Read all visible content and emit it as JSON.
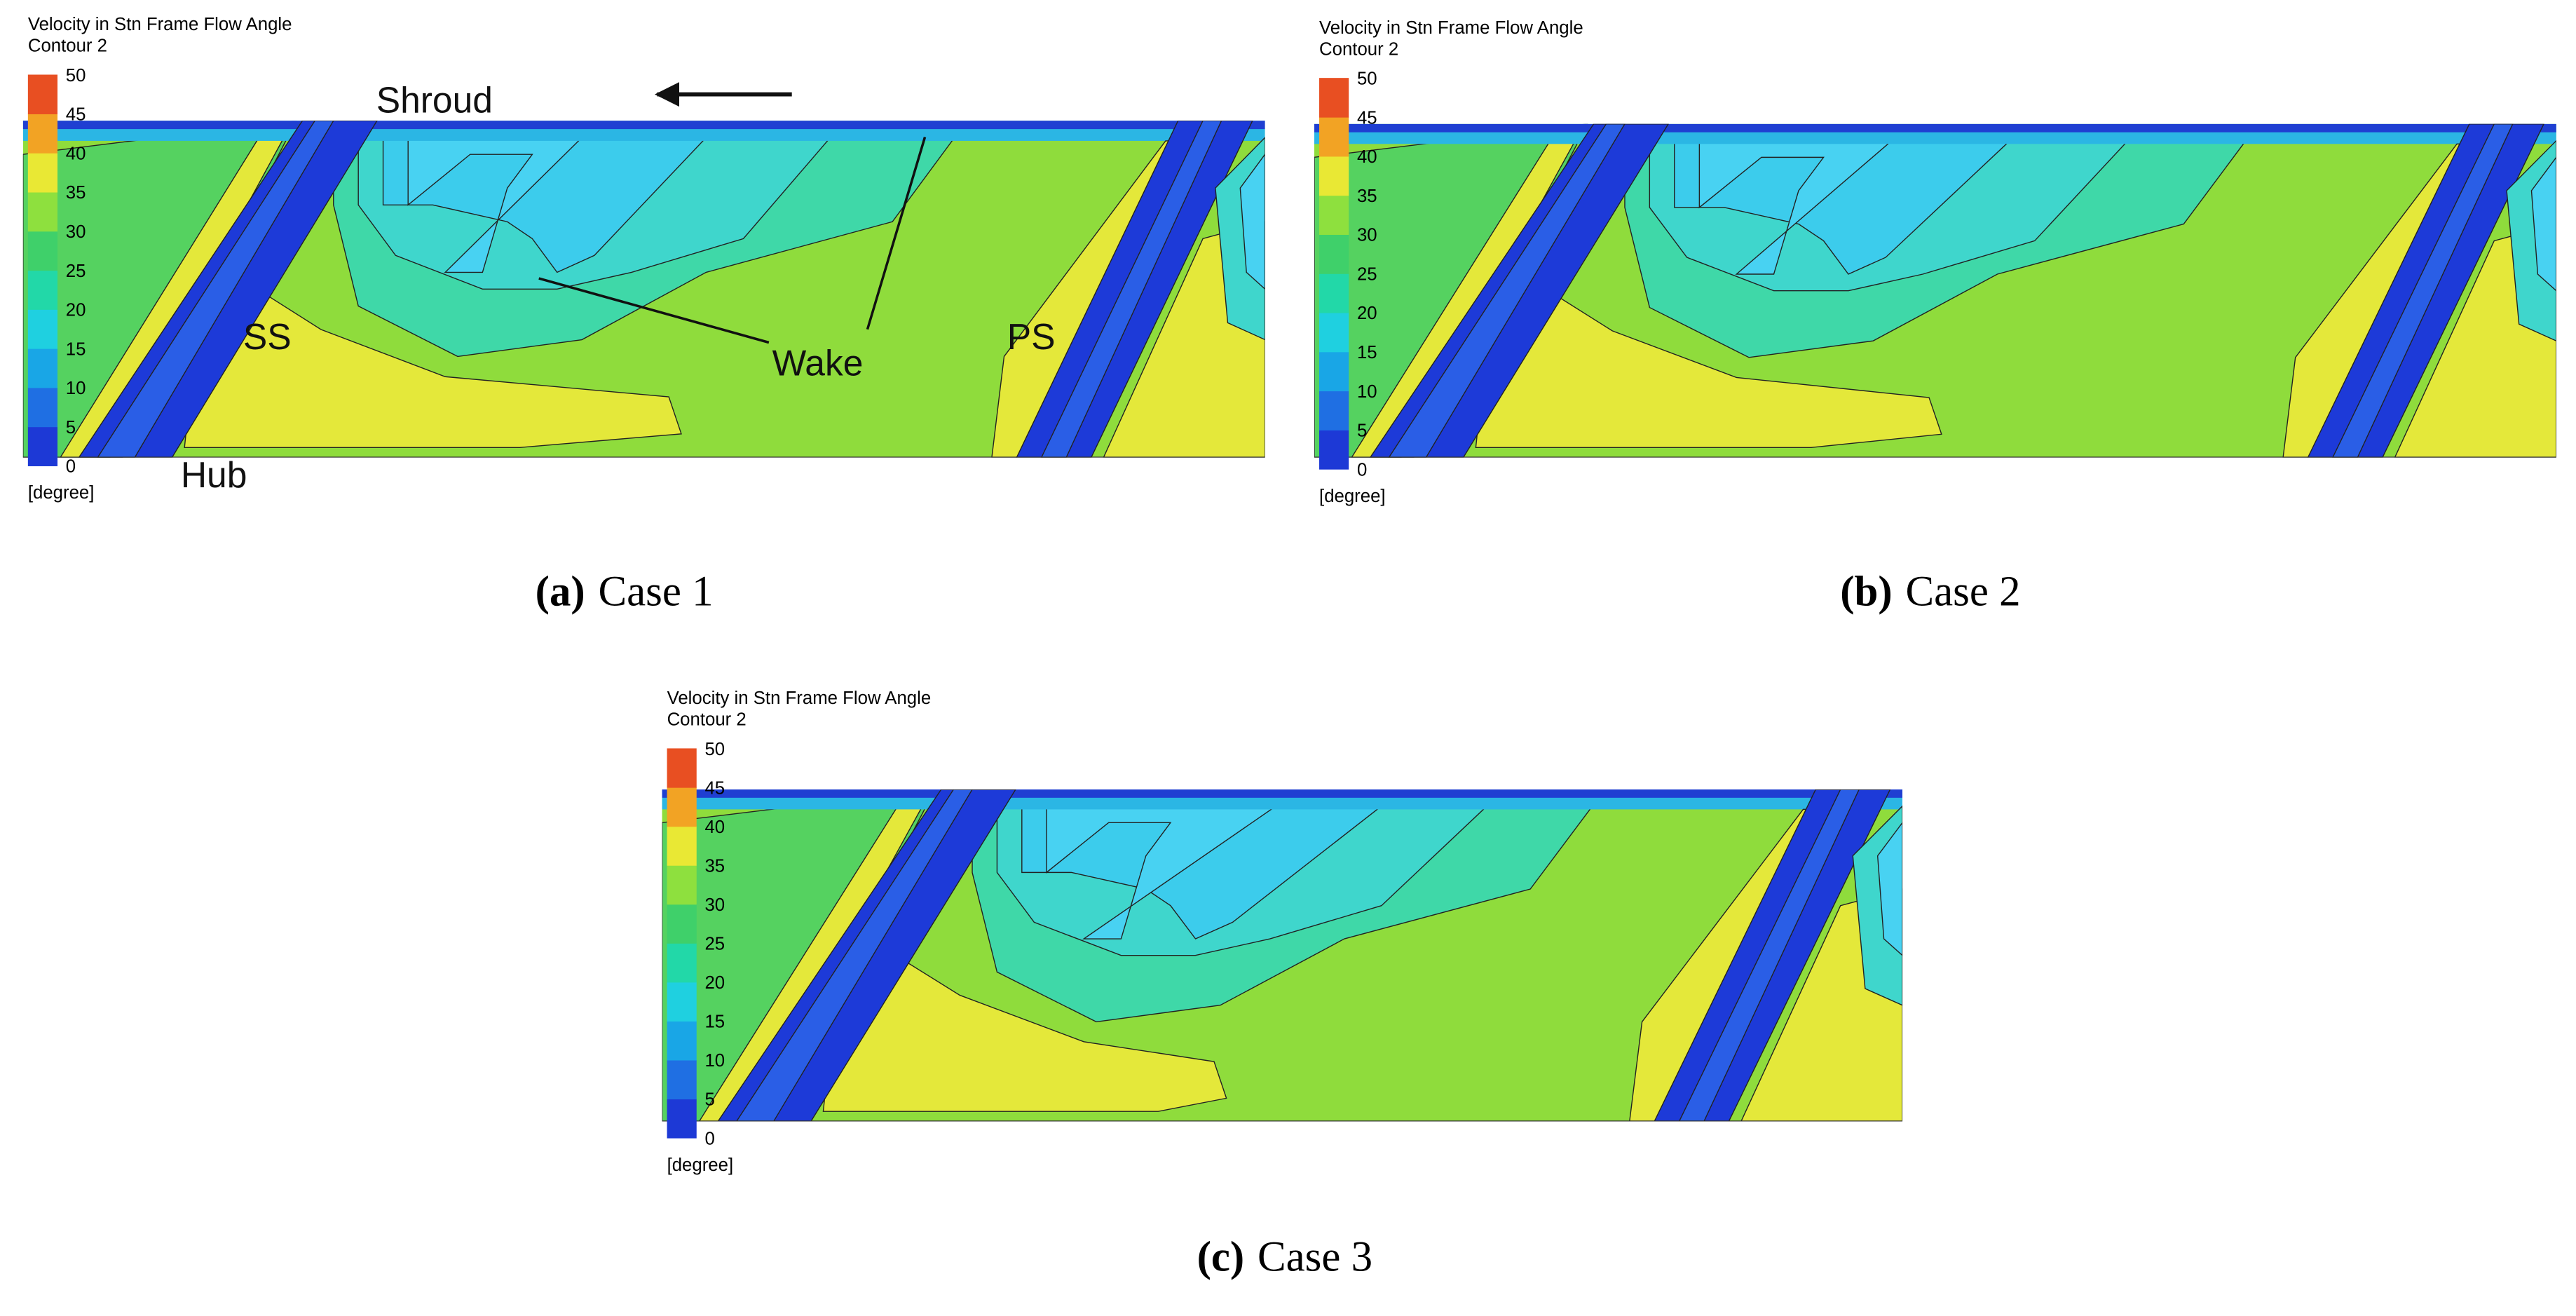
{
  "panels": [
    {
      "legend": {
        "title": "Velocity in Stn Frame Flow Angle",
        "subtitle": "Contour 2",
        "ticks": [
          0,
          5,
          10,
          15,
          20,
          25,
          30,
          35,
          40,
          45,
          50
        ],
        "unit": "[degree]"
      },
      "caption": {
        "label": "(a)",
        "text": "Case 1"
      },
      "annotations": [
        "Shroud",
        "SS",
        "PS",
        "Wake",
        "Hub"
      ]
    },
    {
      "legend": {
        "title": "Velocity in Stn Frame Flow Angle",
        "subtitle": "Contour 2",
        "ticks": [
          0,
          5,
          10,
          15,
          20,
          25,
          30,
          35,
          40,
          45,
          50
        ],
        "unit": "[degree]"
      },
      "caption": {
        "label": "(b)",
        "text": "Case 2"
      }
    },
    {
      "legend": {
        "title": "Velocity in Stn Frame Flow Angle",
        "subtitle": "Contour 2",
        "ticks": [
          0,
          5,
          10,
          15,
          20,
          25,
          30,
          35,
          40,
          45,
          50
        ],
        "unit": "[degree]"
      },
      "caption": {
        "label": "(c)",
        "text": "Case 3"
      }
    }
  ]
}
